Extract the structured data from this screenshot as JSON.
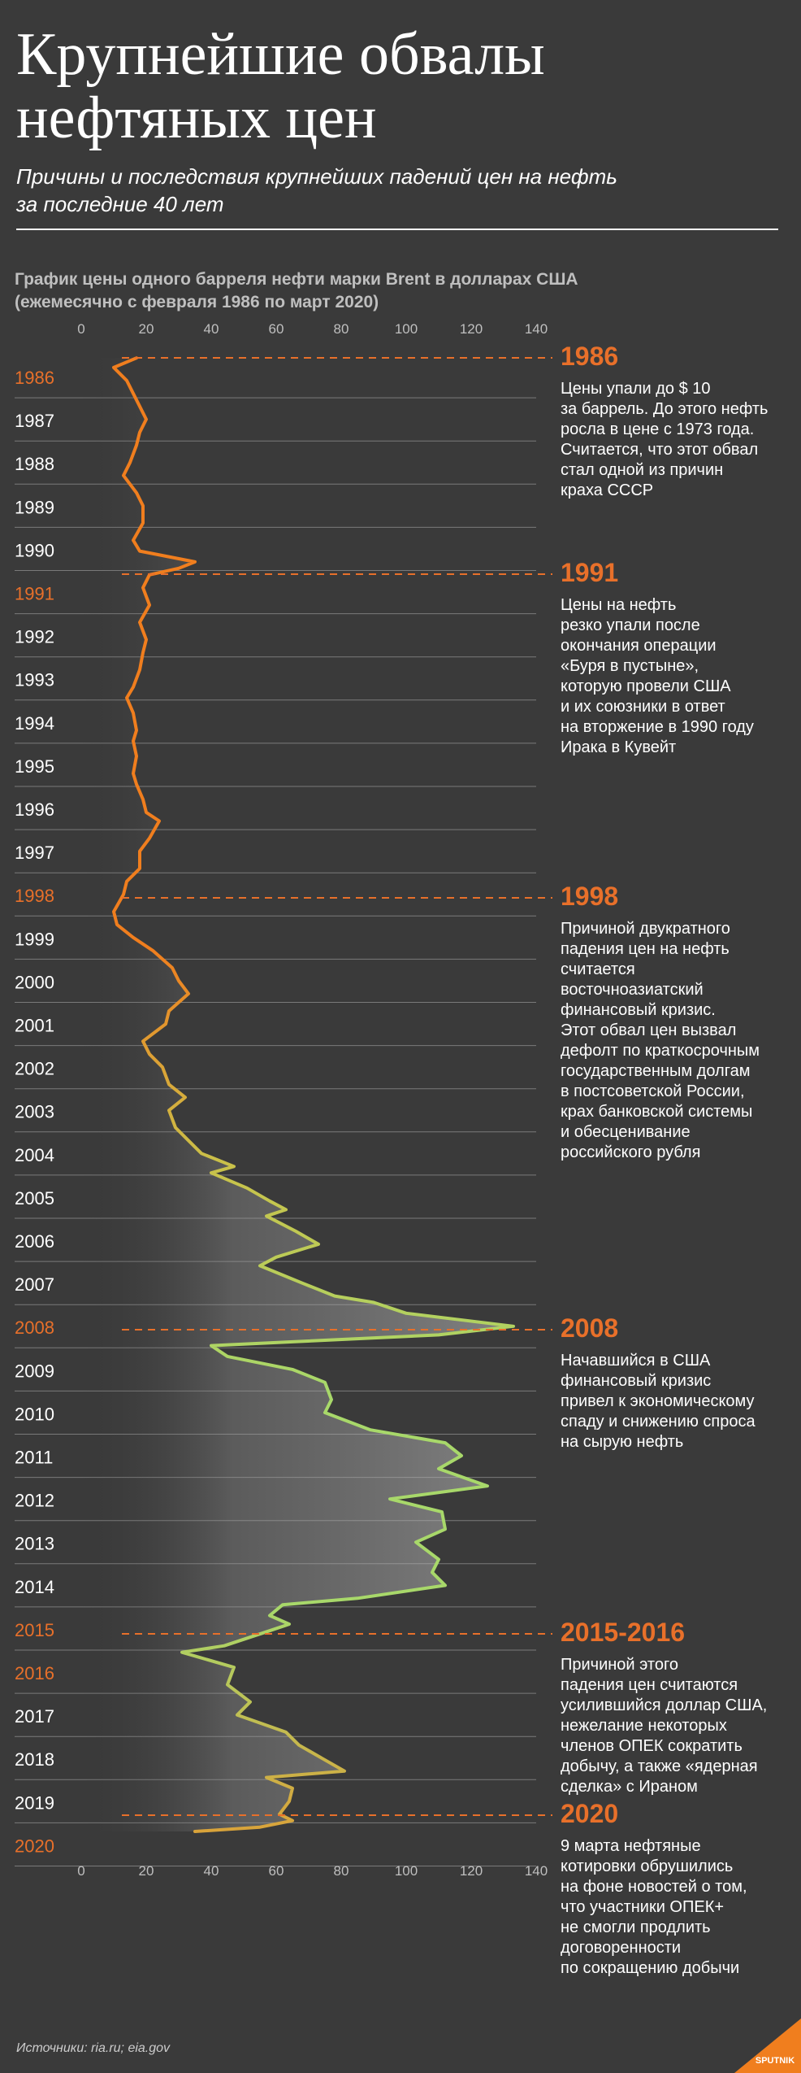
{
  "header": {
    "title": "Крупнейшие обвалы\nнефтяных цен",
    "subtitle": "Причины и последствия крупнейших падений цен на нефть\nза последние 40 лет"
  },
  "chart_header": "График цены одного барреля нефти марки Brent в долларах США\n(ежемесячно с февраля 1986 по март 2020)",
  "chart_data": {
    "type": "line",
    "orientation": "vertical-time",
    "x_ticks": [
      "0",
      "20",
      "40",
      "60",
      "80",
      "100",
      "120",
      "140"
    ],
    "xlim": [
      0,
      140
    ],
    "years": [
      "1986",
      "1987",
      "1988",
      "1989",
      "1990",
      "1991",
      "1992",
      "1993",
      "1994",
      "1995",
      "1996",
      "1997",
      "1998",
      "1999",
      "2000",
      "2001",
      "2002",
      "2003",
      "2004",
      "2005",
      "2006",
      "2007",
      "2008",
      "2009",
      "2010",
      "2011",
      "2012",
      "2013",
      "2014",
      "2015",
      "2016",
      "2017",
      "2018",
      "2019",
      "2020"
    ],
    "highlighted_years": [
      "1986",
      "1991",
      "1998",
      "2008",
      "2015",
      "2016",
      "2020"
    ],
    "grid": true,
    "series": [
      {
        "points": [
          [
            1986.08,
            17
          ],
          [
            1986.3,
            10
          ],
          [
            1986.6,
            14
          ],
          [
            1986.9,
            16
          ],
          [
            1987.2,
            18
          ],
          [
            1987.5,
            20
          ],
          [
            1987.8,
            18
          ],
          [
            1988.1,
            17
          ],
          [
            1988.5,
            15
          ],
          [
            1988.8,
            13
          ],
          [
            1989.2,
            17
          ],
          [
            1989.5,
            19
          ],
          [
            1989.9,
            19
          ],
          [
            1990.3,
            16
          ],
          [
            1990.55,
            18
          ],
          [
            1990.8,
            35
          ],
          [
            1990.95,
            30
          ],
          [
            1991.1,
            21
          ],
          [
            1991.4,
            19
          ],
          [
            1991.8,
            21
          ],
          [
            1992.2,
            18
          ],
          [
            1992.6,
            20
          ],
          [
            1992.9,
            19
          ],
          [
            1993.3,
            18
          ],
          [
            1993.7,
            16
          ],
          [
            1993.95,
            14
          ],
          [
            1994.3,
            16
          ],
          [
            1994.7,
            17
          ],
          [
            1994.95,
            16
          ],
          [
            1995.3,
            17
          ],
          [
            1995.7,
            16
          ],
          [
            1995.95,
            17
          ],
          [
            1996.3,
            19
          ],
          [
            1996.6,
            20
          ],
          [
            1996.8,
            24
          ],
          [
            1997.2,
            21
          ],
          [
            1997.5,
            18
          ],
          [
            1997.9,
            18
          ],
          [
            1998.2,
            14
          ],
          [
            1998.5,
            13
          ],
          [
            1998.9,
            10
          ],
          [
            1999.2,
            11
          ],
          [
            1999.5,
            16
          ],
          [
            1999.8,
            22
          ],
          [
            2000.2,
            28
          ],
          [
            2000.5,
            30
          ],
          [
            2000.8,
            33
          ],
          [
            2001.2,
            27
          ],
          [
            2001.5,
            26
          ],
          [
            2001.9,
            19
          ],
          [
            2002.2,
            21
          ],
          [
            2002.5,
            25
          ],
          [
            2002.9,
            27
          ],
          [
            2003.2,
            32
          ],
          [
            2003.5,
            27
          ],
          [
            2003.9,
            29
          ],
          [
            2004.2,
            33
          ],
          [
            2004.5,
            37
          ],
          [
            2004.8,
            47
          ],
          [
            2004.95,
            40
          ],
          [
            2005.3,
            51
          ],
          [
            2005.6,
            58
          ],
          [
            2005.8,
            63
          ],
          [
            2005.95,
            57
          ],
          [
            2006.3,
            66
          ],
          [
            2006.6,
            73
          ],
          [
            2006.9,
            60
          ],
          [
            2007.1,
            55
          ],
          [
            2007.5,
            68
          ],
          [
            2007.8,
            78
          ],
          [
            2007.95,
            90
          ],
          [
            2008.2,
            100
          ],
          [
            2008.5,
            133
          ],
          [
            2008.7,
            110
          ],
          [
            2008.95,
            40
          ],
          [
            2009.2,
            45
          ],
          [
            2009.5,
            65
          ],
          [
            2009.8,
            75
          ],
          [
            2010.2,
            77
          ],
          [
            2010.5,
            75
          ],
          [
            2010.9,
            89
          ],
          [
            2011.2,
            112
          ],
          [
            2011.5,
            117
          ],
          [
            2011.8,
            110
          ],
          [
            2012.2,
            125
          ],
          [
            2012.5,
            95
          ],
          [
            2012.8,
            111
          ],
          [
            2013.2,
            112
          ],
          [
            2013.5,
            103
          ],
          [
            2013.9,
            110
          ],
          [
            2014.2,
            108
          ],
          [
            2014.5,
            112
          ],
          [
            2014.8,
            85
          ],
          [
            2014.95,
            62
          ],
          [
            2015.2,
            58
          ],
          [
            2015.4,
            64
          ],
          [
            2015.6,
            56
          ],
          [
            2015.9,
            44
          ],
          [
            2016.05,
            31
          ],
          [
            2016.4,
            47
          ],
          [
            2016.8,
            45
          ],
          [
            2017.2,
            52
          ],
          [
            2017.5,
            48
          ],
          [
            2017.9,
            63
          ],
          [
            2018.2,
            67
          ],
          [
            2018.5,
            74
          ],
          [
            2018.8,
            81
          ],
          [
            2018.95,
            57
          ],
          [
            2019.2,
            65
          ],
          [
            2019.5,
            64
          ],
          [
            2019.8,
            61
          ],
          [
            2019.95,
            65
          ],
          [
            2020.1,
            55
          ],
          [
            2020.2,
            35
          ]
        ]
      }
    ]
  },
  "annotations": [
    {
      "year": "1986",
      "at": 1986.0,
      "title": "1986",
      "text": "Цены упали до $ 10\nза баррель. До этого нефть\nросла в цене с 1973 года.\nСчитается, что этот обвал\nстал одной из причин\nкраха СССР"
    },
    {
      "year": "1991",
      "at": 1991.0,
      "title": "1991",
      "text": "Цены на нефть\nрезко упали после\nокончания операции\n«Буря в пустыне»,\nкоторую провели США\nи их союзники в ответ\nна вторжение в 1990 году\nИрака в Кувейт"
    },
    {
      "year": "1998",
      "at": 1998.5,
      "title": "1998",
      "text": "Причиной двукратного\nпадения цен на нефть\nсчитается\nвосточноазиатский\nфинансовый кризис.\nЭтот обвал цен вызвал\nдефолт по краткосрочным\nгосударственным долгам\nв постсоветской России,\nкрах банковской системы\nи обесценивание\nроссийского рубля"
    },
    {
      "year": "2008",
      "at": 2008.5,
      "title": "2008",
      "text": "Начавшийся в США\nфинансовый кризис\nпривел к экономическому\nспаду и снижению спроса\nна сырую нефть"
    },
    {
      "year": "2016",
      "at": 2015.55,
      "title": "2015-2016",
      "text": "Причиной этого\nпадения цен считаются\nусилившийся доллар США,\nнежелание некоторых\nчленов ОПЕК сократить\nдобычу, а также «ядерная\nсделка» с Ираном"
    },
    {
      "year": "2020",
      "at": 2019.75,
      "title": "2020",
      "text": "9 марта нефтяные\nкотировки обрушились\nна фоне новостей о том,\nчто участники ОПЕК+\nне смогли продлить\nдоговоренности\nпо сокращению добычи"
    }
  ],
  "footer": {
    "sources": "Источники: ria.ru; eia.gov",
    "logo_text": "SPUTNIK"
  },
  "colors": {
    "background": "#3a3a3a",
    "accent": "#e8702a",
    "line_start": "#f07e1e",
    "line_end": "#a8d86a",
    "grid": "#7a7a7a"
  }
}
